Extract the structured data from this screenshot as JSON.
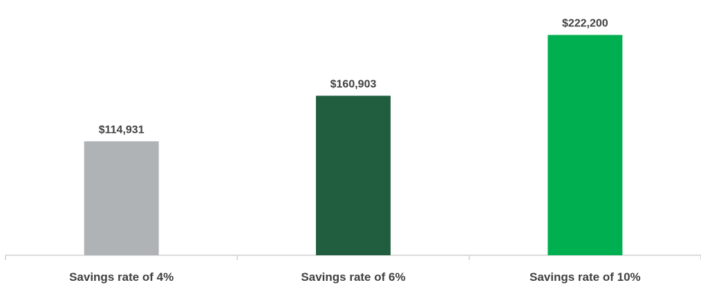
{
  "chart_data": {
    "type": "bar",
    "title": "",
    "categories": [
      "Savings rate of 4%",
      "Savings rate of 6%",
      "Savings rate of 10%"
    ],
    "values": [
      114931,
      160903,
      222200
    ],
    "value_labels": [
      "$114,931",
      "$160,903",
      "$222,200"
    ],
    "colors": [
      "#b0b3b6",
      "#215e40",
      "#00b050"
    ],
    "ylim": [
      0,
      240000
    ],
    "xlabel": "",
    "ylabel": "",
    "grid": false,
    "legend": "none"
  }
}
